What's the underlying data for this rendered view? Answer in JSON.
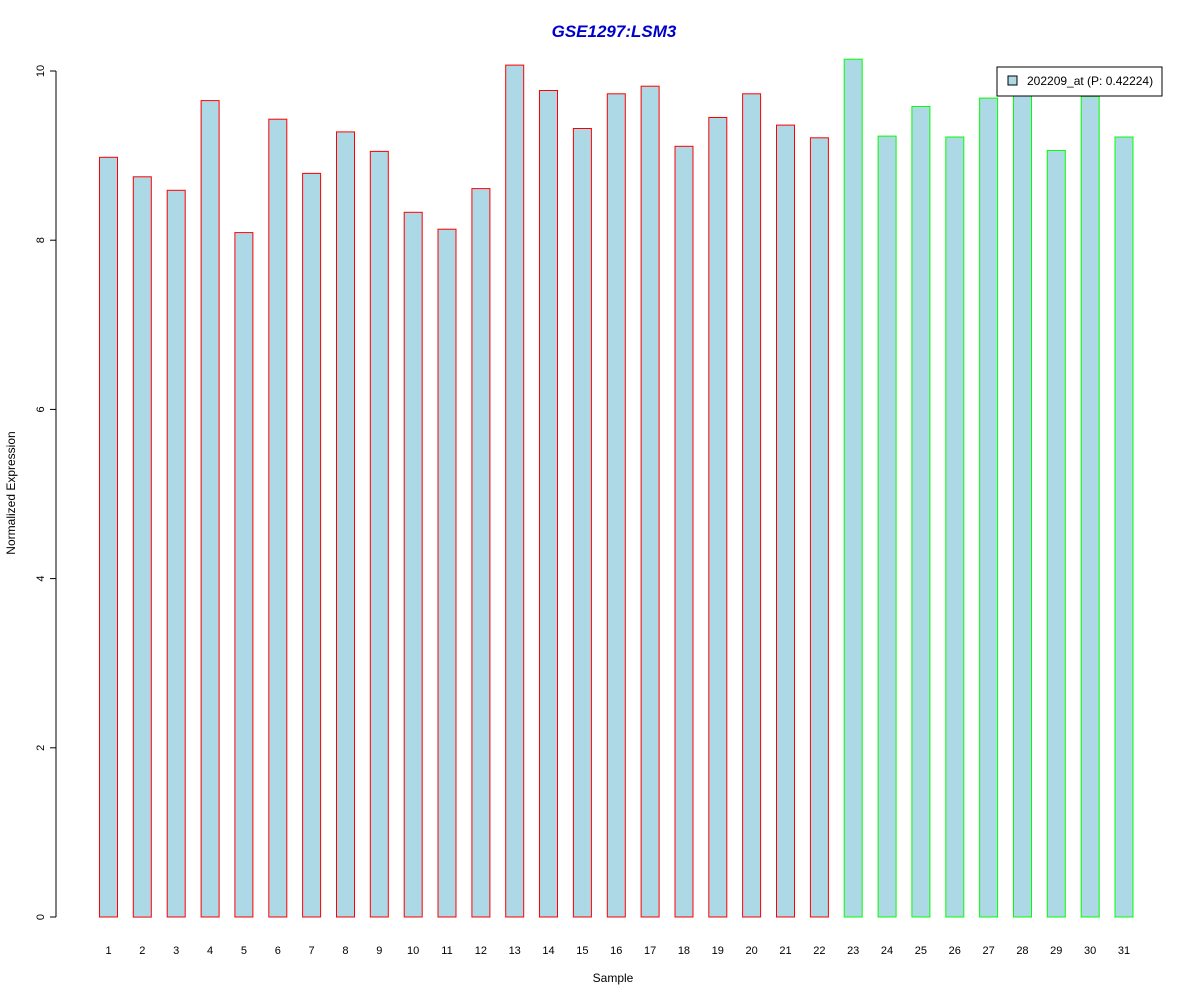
{
  "chart_data": {
    "type": "bar",
    "title": "GSE1297:LSM3",
    "xlabel": "Sample",
    "ylabel": "Normalized Expression",
    "ylim": [
      0,
      10
    ],
    "yticks": [
      0,
      2,
      4,
      6,
      8,
      10
    ],
    "categories": [
      "1",
      "2",
      "3",
      "4",
      "5",
      "6",
      "7",
      "8",
      "9",
      "10",
      "11",
      "12",
      "13",
      "14",
      "15",
      "16",
      "17",
      "18",
      "19",
      "20",
      "21",
      "22",
      "23",
      "24",
      "25",
      "26",
      "27",
      "28",
      "29",
      "30",
      "31"
    ],
    "series": [
      {
        "name": "202209_at (P: 0.42224)",
        "values": [
          8.98,
          8.75,
          8.59,
          9.65,
          8.09,
          9.43,
          8.79,
          9.28,
          9.05,
          8.33,
          8.13,
          8.61,
          10.07,
          9.77,
          9.32,
          9.73,
          9.82,
          9.11,
          9.45,
          9.73,
          9.36,
          9.21,
          10.14,
          9.23,
          9.58,
          9.22,
          9.68,
          9.73,
          9.06,
          9.7,
          9.22
        ]
      }
    ],
    "groups": [
      "red",
      "red",
      "red",
      "red",
      "red",
      "red",
      "red",
      "red",
      "red",
      "red",
      "red",
      "red",
      "red",
      "red",
      "red",
      "red",
      "red",
      "red",
      "red",
      "red",
      "red",
      "red",
      "green",
      "green",
      "green",
      "green",
      "green",
      "green",
      "green",
      "green",
      "green"
    ],
    "colors": {
      "fill": "#add8e6",
      "group_red": "#ff0000",
      "group_green": "#00ff00",
      "title": "#0000cc"
    },
    "grid": false,
    "legend_position": "top-right"
  }
}
